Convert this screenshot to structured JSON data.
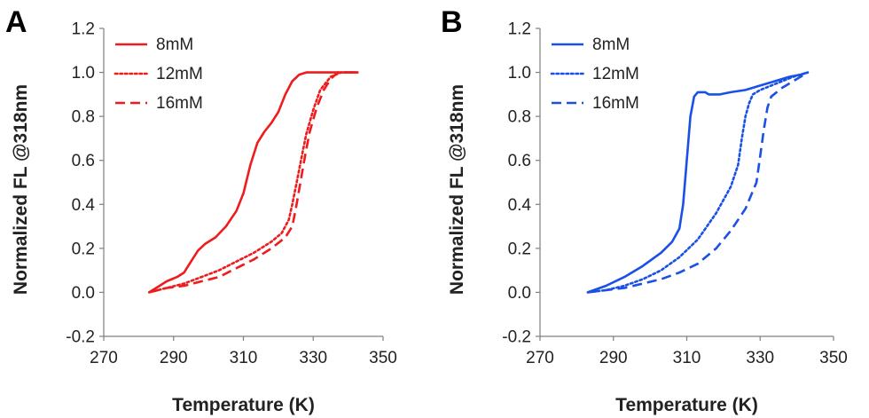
{
  "chart_data": [
    {
      "panel": "A",
      "type": "line",
      "color": "#ee1c1c",
      "xlabel": "Temperature (K)",
      "ylabel": "Normalized FL @318nm",
      "xlim": [
        270,
        350
      ],
      "ylim": [
        -0.2,
        1.2
      ],
      "xticks": [
        "270",
        "290",
        "310",
        "330",
        "350"
      ],
      "yticks": [
        "-0.2",
        "0.0",
        "0.2",
        "0.4",
        "0.6",
        "0.8",
        "1.0",
        "1.2"
      ],
      "legend_position": "top-left",
      "series": [
        {
          "name": "8mM",
          "dash": "solid",
          "x": [
            283,
            285,
            288,
            291,
            293,
            295,
            297,
            299,
            302,
            305,
            308,
            310,
            312,
            314,
            316,
            318,
            320,
            322,
            324,
            326,
            328,
            331,
            334,
            337,
            340,
            343
          ],
          "y": [
            0.0,
            0.02,
            0.05,
            0.07,
            0.09,
            0.14,
            0.19,
            0.22,
            0.25,
            0.3,
            0.37,
            0.45,
            0.58,
            0.68,
            0.73,
            0.77,
            0.82,
            0.9,
            0.96,
            0.99,
            1.0,
            1.0,
            1.0,
            1.0,
            1.0,
            1.0
          ]
        },
        {
          "name": "12mM",
          "dash": "dotted",
          "x": [
            283,
            288,
            293,
            298,
            303,
            308,
            313,
            318,
            321,
            323,
            324,
            325,
            326,
            327,
            328,
            330,
            332,
            335,
            338,
            343
          ],
          "y": [
            0.0,
            0.02,
            0.04,
            0.07,
            0.1,
            0.14,
            0.18,
            0.23,
            0.27,
            0.33,
            0.4,
            0.48,
            0.56,
            0.64,
            0.72,
            0.83,
            0.92,
            0.98,
            1.0,
            1.0
          ]
        },
        {
          "name": "16mM",
          "dash": "dashed",
          "x": [
            283,
            288,
            293,
            298,
            303,
            308,
            313,
            318,
            322,
            324,
            325,
            326,
            327,
            328,
            329,
            331,
            333,
            335,
            337,
            339,
            343
          ],
          "y": [
            0.0,
            0.02,
            0.03,
            0.05,
            0.07,
            0.11,
            0.15,
            0.2,
            0.25,
            0.3,
            0.38,
            0.47,
            0.56,
            0.65,
            0.73,
            0.84,
            0.92,
            0.97,
            1.0,
            1.0,
            1.0
          ]
        }
      ]
    },
    {
      "panel": "B",
      "type": "line",
      "color": "#1a50e6",
      "xlabel": "Temperature (K)",
      "ylabel": "Normalized FL @318nm",
      "xlim": [
        270,
        350
      ],
      "ylim": [
        -0.2,
        1.2
      ],
      "xticks": [
        "270",
        "290",
        "310",
        "330",
        "350"
      ],
      "yticks": [
        "-0.2",
        "0.0",
        "0.2",
        "0.4",
        "0.6",
        "0.8",
        "1.0",
        "1.2"
      ],
      "legend_position": "top-left",
      "series": [
        {
          "name": "8mM",
          "dash": "solid",
          "x": [
            283,
            288,
            293,
            298,
            303,
            306,
            308,
            309,
            310,
            311,
            312,
            313,
            314,
            315,
            316,
            317,
            319,
            322,
            326,
            330,
            334,
            338,
            341,
            343
          ],
          "y": [
            0.0,
            0.03,
            0.07,
            0.12,
            0.18,
            0.23,
            0.29,
            0.4,
            0.6,
            0.8,
            0.89,
            0.91,
            0.91,
            0.91,
            0.9,
            0.9,
            0.9,
            0.91,
            0.92,
            0.94,
            0.96,
            0.98,
            0.99,
            1.0
          ]
        },
        {
          "name": "12mM",
          "dash": "dotted",
          "x": [
            283,
            288,
            293,
            298,
            303,
            308,
            313,
            318,
            322,
            324,
            325,
            326,
            327,
            328,
            330,
            333,
            336,
            339,
            343
          ],
          "y": [
            0.0,
            0.01,
            0.03,
            0.06,
            0.1,
            0.16,
            0.24,
            0.36,
            0.48,
            0.58,
            0.7,
            0.8,
            0.86,
            0.9,
            0.92,
            0.94,
            0.96,
            0.98,
            1.0
          ]
        },
        {
          "name": "16mM",
          "dash": "dashed",
          "x": [
            283,
            288,
            293,
            298,
            303,
            308,
            313,
            318,
            322,
            326,
            329,
            330,
            331,
            332,
            333,
            336,
            339,
            343
          ],
          "y": [
            0.0,
            0.01,
            0.02,
            0.04,
            0.06,
            0.09,
            0.13,
            0.2,
            0.28,
            0.38,
            0.5,
            0.62,
            0.74,
            0.84,
            0.89,
            0.93,
            0.96,
            1.0
          ]
        }
      ]
    }
  ]
}
